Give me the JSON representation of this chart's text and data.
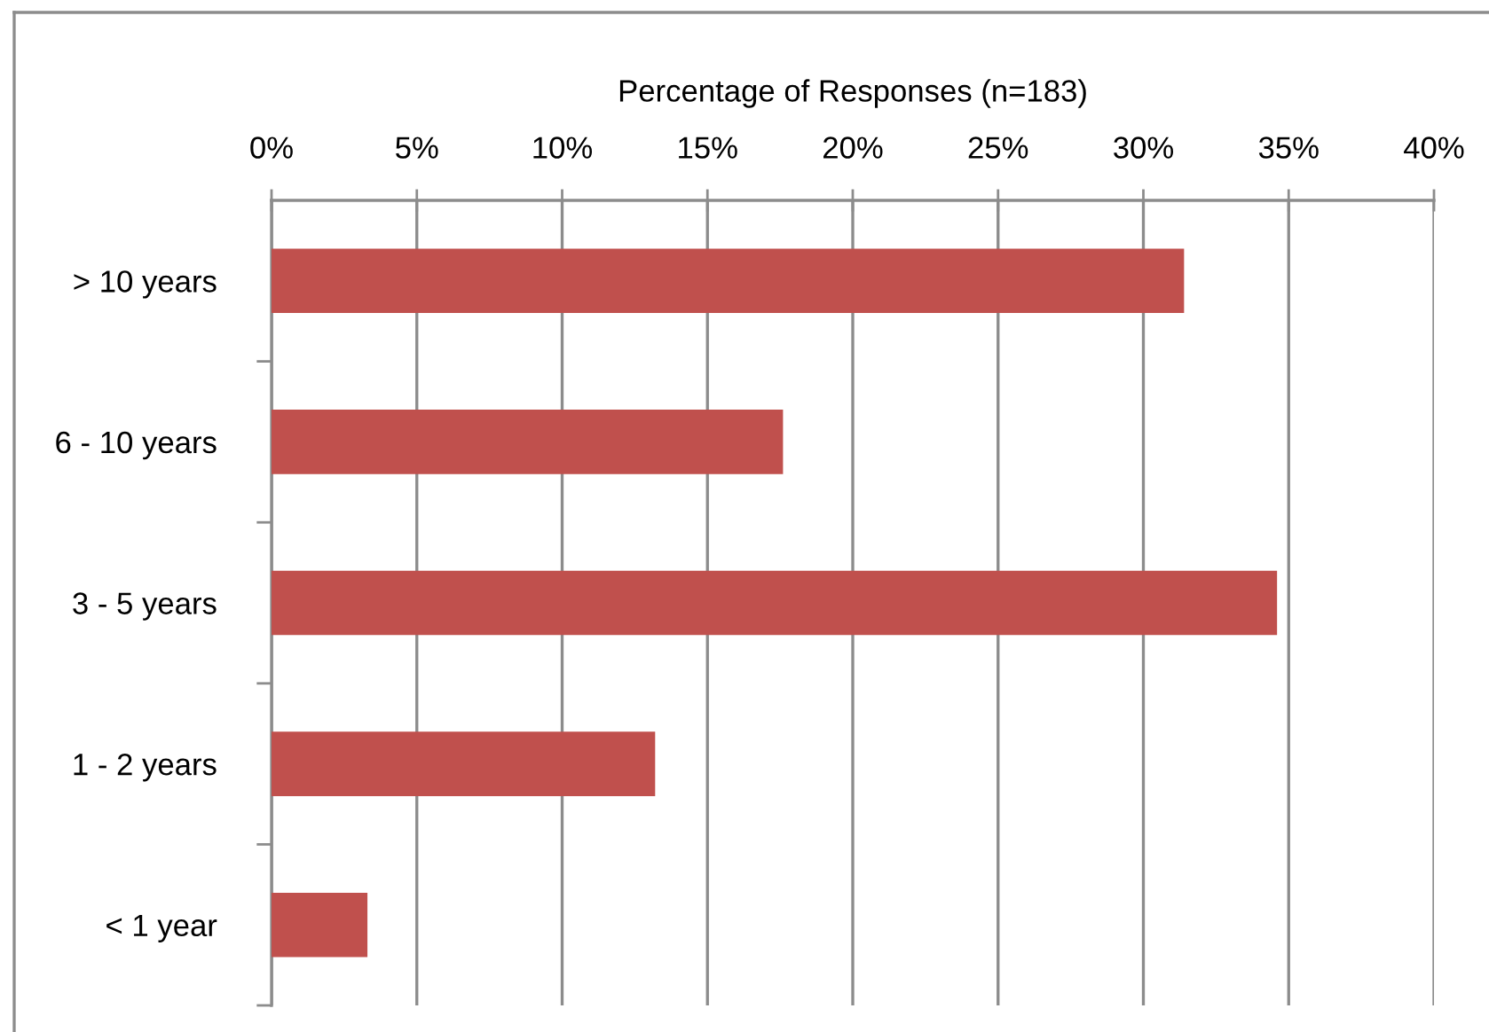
{
  "chart_data": {
    "type": "bar",
    "orientation": "horizontal",
    "xlabel": "Percentage of Responses (n=183)",
    "categories": [
      "> 10 years",
      "6 - 10 years",
      "3 - 5 years",
      "1 - 2 years",
      "< 1 year"
    ],
    "values": [
      31.4,
      17.6,
      34.6,
      13.2,
      3.3
    ],
    "color": "#c0504d",
    "xlim": [
      0,
      40
    ],
    "xticks": [
      {
        "value": 0,
        "label": "0%"
      },
      {
        "value": 5,
        "label": "5%"
      },
      {
        "value": 10,
        "label": "10%"
      },
      {
        "value": 15,
        "label": "15%"
      },
      {
        "value": 20,
        "label": "20%"
      },
      {
        "value": 25,
        "label": "25%"
      },
      {
        "value": 30,
        "label": "30%"
      },
      {
        "value": 35,
        "label": "35%"
      },
      {
        "value": 40,
        "label": "40%"
      }
    ],
    "grid": "x"
  }
}
